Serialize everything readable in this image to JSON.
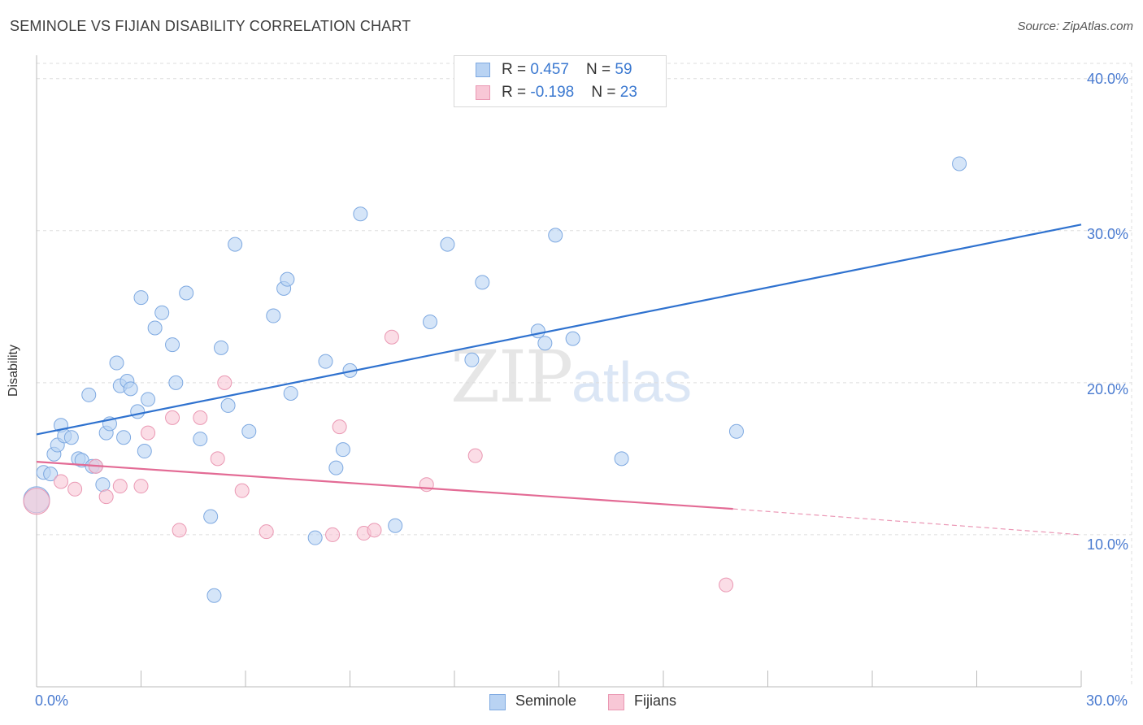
{
  "title": "SEMINOLE VS FIJIAN DISABILITY CORRELATION CHART",
  "source": "Source: ZipAtlas.com",
  "watermark": {
    "zip": "ZIP",
    "atlas": "atlas"
  },
  "colors": {
    "seminole_fill": "#b9d3f3",
    "seminole_stroke": "#7ea9e1",
    "seminole_line": "#2f72cf",
    "fijians_fill": "#f8c7d6",
    "fijians_stroke": "#ea98b3",
    "fijians_line": "#e36b95",
    "grid": "#dddddd",
    "tick_label": "#4a7bd0"
  },
  "legend_top": [
    {
      "r_label": "R = ",
      "r_value": "0.457",
      "n_label": "N = ",
      "n_value": "59"
    },
    {
      "r_label": "R = ",
      "r_value": "-0.198",
      "n_label": "N = ",
      "n_value": "23"
    }
  ],
  "legend_bottom": [
    "Seminole",
    "Fijians"
  ],
  "chart_data": {
    "type": "scatter",
    "title": "SEMINOLE VS FIJIAN DISABILITY CORRELATION CHART",
    "xlabel": "",
    "ylabel": "Disability",
    "xlim": [
      0,
      30
    ],
    "ylim": [
      0,
      40
    ],
    "x_tick_labels": [
      "0.0%",
      "30.0%"
    ],
    "y_ticks": [
      10,
      20,
      30,
      40
    ],
    "y_tick_labels": [
      "10.0%",
      "20.0%",
      "30.0%",
      "40.0%"
    ],
    "grid": true,
    "legend_position": "top-center",
    "series": [
      {
        "name": "Seminole",
        "r": 0.457,
        "n": 59,
        "trend": {
          "x": [
            0,
            30
          ],
          "y": [
            16.6,
            30.4
          ]
        },
        "points": [
          [
            0.0,
            12.3
          ],
          [
            0.2,
            14.1
          ],
          [
            0.4,
            14.0
          ],
          [
            0.5,
            15.3
          ],
          [
            0.6,
            15.9
          ],
          [
            0.7,
            17.2
          ],
          [
            0.8,
            16.5
          ],
          [
            1.0,
            16.4
          ],
          [
            1.2,
            15.0
          ],
          [
            1.3,
            14.9
          ],
          [
            1.5,
            19.2
          ],
          [
            1.6,
            14.5
          ],
          [
            1.7,
            14.5
          ],
          [
            1.9,
            13.3
          ],
          [
            2.0,
            16.7
          ],
          [
            2.1,
            17.3
          ],
          [
            2.3,
            21.3
          ],
          [
            2.4,
            19.8
          ],
          [
            2.5,
            16.4
          ],
          [
            2.6,
            20.1
          ],
          [
            2.7,
            19.6
          ],
          [
            2.9,
            18.1
          ],
          [
            3.0,
            25.6
          ],
          [
            3.1,
            15.5
          ],
          [
            3.2,
            18.9
          ],
          [
            3.4,
            23.6
          ],
          [
            3.6,
            24.6
          ],
          [
            3.9,
            22.5
          ],
          [
            4.0,
            20.0
          ],
          [
            4.3,
            25.9
          ],
          [
            4.7,
            16.3
          ],
          [
            5.0,
            11.2
          ],
          [
            5.1,
            6.0
          ],
          [
            5.3,
            22.3
          ],
          [
            5.5,
            18.5
          ],
          [
            5.7,
            29.1
          ],
          [
            6.1,
            16.8
          ],
          [
            6.8,
            24.4
          ],
          [
            7.1,
            26.2
          ],
          [
            7.2,
            26.8
          ],
          [
            7.3,
            19.3
          ],
          [
            8.0,
            9.8
          ],
          [
            8.3,
            21.4
          ],
          [
            8.6,
            14.4
          ],
          [
            8.8,
            15.6
          ],
          [
            9.0,
            20.8
          ],
          [
            9.3,
            31.1
          ],
          [
            10.3,
            10.6
          ],
          [
            11.3,
            24.0
          ],
          [
            11.8,
            29.1
          ],
          [
            12.5,
            21.5
          ],
          [
            12.8,
            26.6
          ],
          [
            14.4,
            23.4
          ],
          [
            14.6,
            22.6
          ],
          [
            14.9,
            29.7
          ],
          [
            15.4,
            22.9
          ],
          [
            16.8,
            15.0
          ],
          [
            20.1,
            16.8
          ],
          [
            26.5,
            34.4
          ]
        ]
      },
      {
        "name": "Fijians",
        "r": -0.198,
        "n": 23,
        "trend": {
          "x": [
            0,
            20
          ],
          "y": [
            14.8,
            11.7
          ]
        },
        "trend_dashed": {
          "x": [
            20,
            30
          ],
          "y": [
            11.7,
            10.0
          ]
        },
        "points": [
          [
            0.0,
            12.2
          ],
          [
            0.7,
            13.5
          ],
          [
            1.1,
            13.0
          ],
          [
            1.7,
            14.5
          ],
          [
            2.0,
            12.5
          ],
          [
            2.4,
            13.2
          ],
          [
            3.0,
            13.2
          ],
          [
            3.2,
            16.7
          ],
          [
            3.9,
            17.7
          ],
          [
            4.1,
            10.3
          ],
          [
            4.7,
            17.7
          ],
          [
            5.2,
            15.0
          ],
          [
            5.4,
            20.0
          ],
          [
            5.9,
            12.9
          ],
          [
            6.6,
            10.2
          ],
          [
            8.5,
            10.0
          ],
          [
            8.7,
            17.1
          ],
          [
            9.4,
            10.1
          ],
          [
            9.7,
            10.3
          ],
          [
            10.2,
            23.0
          ],
          [
            11.2,
            13.3
          ],
          [
            12.6,
            15.2
          ],
          [
            19.8,
            6.7
          ]
        ]
      }
    ]
  }
}
